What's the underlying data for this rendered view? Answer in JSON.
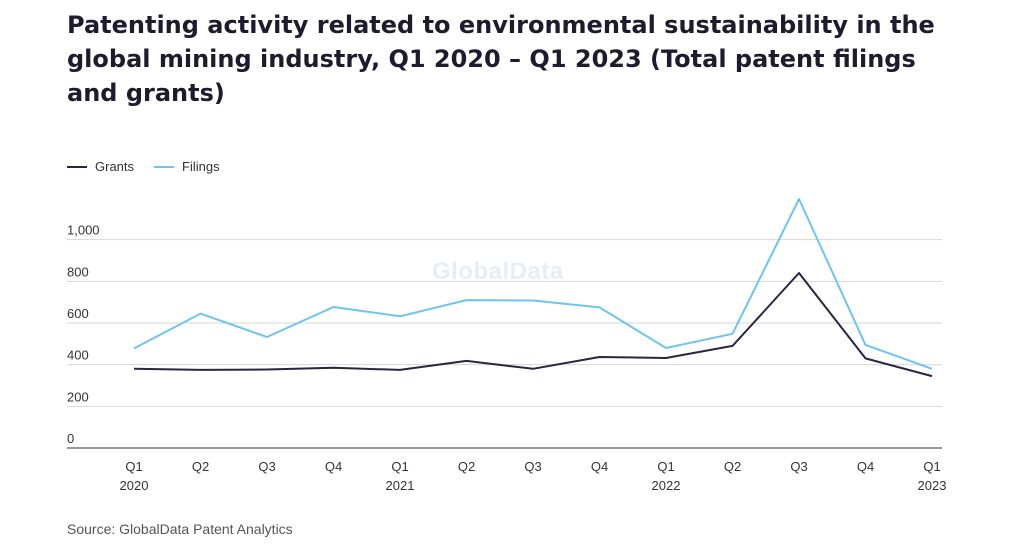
{
  "title": "Patenting activity related to environmental sustainability in the global mining industry, Q1 2020 – Q1 2023 (Total patent filings and grants)",
  "source": "Source: GlobalData Patent Analytics",
  "watermark": "GlobalData",
  "colors": {
    "grants": "#2a2540",
    "filings": "#6ec4f0",
    "grid": "#d6d6d6",
    "axis": "#333333"
  },
  "legend": [
    {
      "name": "Grants",
      "color": "#2a2540"
    },
    {
      "name": "Filings",
      "color": "#6ec4f0"
    }
  ],
  "chart_data": {
    "type": "line",
    "categories": [
      [
        "Q1",
        "2020"
      ],
      [
        "Q2",
        ""
      ],
      [
        "Q3",
        ""
      ],
      [
        "Q4",
        ""
      ],
      [
        "Q1",
        "2021"
      ],
      [
        "Q2",
        ""
      ],
      [
        "Q3",
        ""
      ],
      [
        "Q4",
        ""
      ],
      [
        "Q1",
        "2022"
      ],
      [
        "Q2",
        ""
      ],
      [
        "Q3",
        ""
      ],
      [
        "Q4",
        ""
      ],
      [
        "Q1",
        "2023"
      ]
    ],
    "series": [
      {
        "name": "Grants",
        "values": [
          380,
          375,
          377,
          385,
          375,
          418,
          380,
          437,
          432,
          490,
          840,
          430,
          345
        ]
      },
      {
        "name": "Filings",
        "values": [
          478,
          645,
          533,
          677,
          632,
          710,
          708,
          675,
          480,
          548,
          1195,
          495,
          380
        ]
      }
    ],
    "yticks": [
      0,
      200,
      400,
      600,
      800,
      1000
    ],
    "ytick_labels": [
      "0",
      "200",
      "400",
      "600",
      "800",
      "1,000"
    ],
    "ylim": [
      0,
      1200
    ],
    "grid": true,
    "legend_position": "top-left"
  }
}
